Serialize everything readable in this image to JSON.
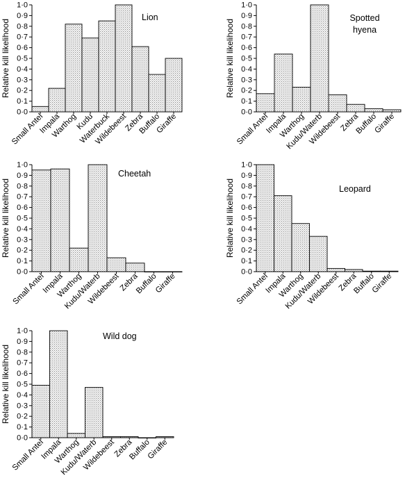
{
  "figure": {
    "ylabel": "Relative kill likelihood",
    "yticks": [
      "0·0",
      "0·1",
      "0·2",
      "0·3",
      "0·4",
      "0·5",
      "0·6",
      "0·7",
      "0·8",
      "0·9",
      "1·0"
    ]
  },
  "chart_data": [
    {
      "type": "bar",
      "title": "Lion",
      "ylabel": "Relative kill likelihood",
      "ylim": [
        0,
        1
      ],
      "categories": [
        "Small Antel",
        "Impala",
        "Warthog",
        "Kudu",
        "Waterbuck",
        "Wildebeest",
        "Zebra",
        "Buffalo",
        "Giraffe"
      ],
      "values": [
        0.05,
        0.22,
        0.82,
        0.69,
        0.85,
        1.0,
        0.61,
        0.35,
        0.5
      ]
    },
    {
      "type": "bar",
      "title": "Spotted hyena",
      "ylabel": "Relative kill likelihood",
      "ylim": [
        0,
        1
      ],
      "categories": [
        "Small Antel",
        "Impala",
        "Warthog",
        "Kudu/Waterb",
        "Wildebeest",
        "Zebra",
        "Buffalo",
        "Giraffe"
      ],
      "values": [
        0.17,
        0.54,
        0.23,
        1.0,
        0.16,
        0.07,
        0.03,
        0.02
      ]
    },
    {
      "type": "bar",
      "title": "Cheetah",
      "ylabel": "Relative kill likelihood",
      "ylim": [
        0,
        1
      ],
      "categories": [
        "Small Antel",
        "Impala",
        "Warthog",
        "Kudu/Waterb",
        "Wildebeest",
        "Zebra",
        "Buffalo",
        "Giraffe"
      ],
      "values": [
        0.95,
        0.96,
        0.22,
        1.0,
        0.13,
        0.08,
        0.0,
        0.0
      ]
    },
    {
      "type": "bar",
      "title": "Leopard",
      "ylabel": "Relative kill likelihood",
      "ylim": [
        0,
        1
      ],
      "categories": [
        "Small Antel",
        "Impala",
        "Warthog",
        "Kudu/Waterb",
        "Wildebeest",
        "Zebra",
        "Buffalo",
        "Giraffe"
      ],
      "values": [
        1.0,
        0.71,
        0.45,
        0.33,
        0.03,
        0.02,
        0.005,
        0.005
      ]
    },
    {
      "type": "bar",
      "title": "Wild dog",
      "ylabel": "Relative kill likelihood",
      "ylim": [
        0,
        1
      ],
      "categories": [
        "Small Antel",
        "Impala",
        "Warthog",
        "Kudu/Waterb",
        "Wildebeest",
        "Zebra",
        "Buffalo",
        "Giraffe"
      ],
      "values": [
        0.49,
        1.0,
        0.04,
        0.47,
        0.01,
        0.01,
        0.0,
        0.01
      ]
    }
  ]
}
